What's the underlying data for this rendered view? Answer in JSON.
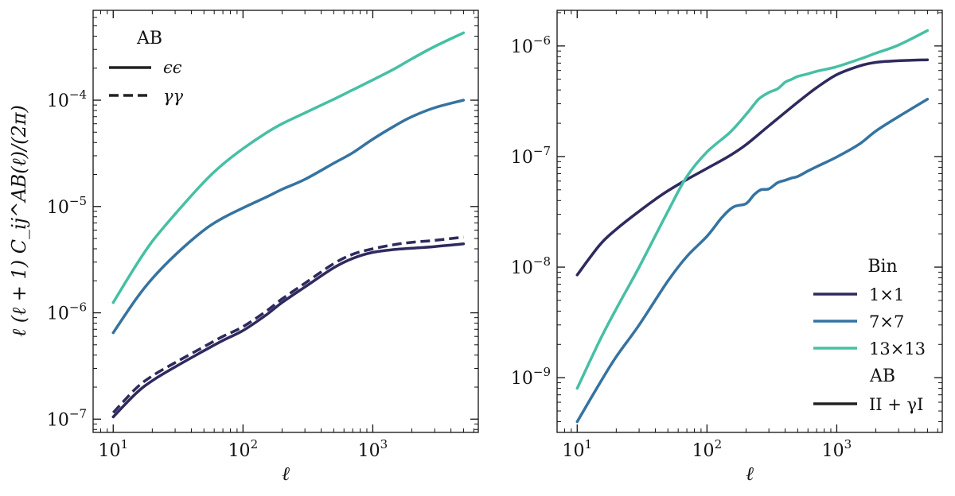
{
  "colors": {
    "bin_1x1": "#2e2a5e",
    "bin_7x7": "#3573a1",
    "bin_13x13": "#47bfa5",
    "legend_black": "#222222"
  },
  "chart_data": [
    {
      "type": "line",
      "panel": "left",
      "xscale": "log",
      "yscale": "log",
      "xlim": [
        7,
        6500
      ],
      "ylim": [
        7.5e-08,
        0.0007
      ],
      "xlabel": "ℓ",
      "ylabel": "ℓ (ℓ + 1) C_ij^AB(ℓ)/(2π)",
      "xticks": [
        {
          "v": 10,
          "base": "10",
          "exp": "1"
        },
        {
          "v": 100,
          "base": "10",
          "exp": "2"
        },
        {
          "v": 1000,
          "base": "10",
          "exp": "3"
        }
      ],
      "yticks": [
        {
          "v": 1e-07,
          "base": "10",
          "exp": "−7"
        },
        {
          "v": 1e-06,
          "base": "10",
          "exp": "−6"
        },
        {
          "v": 1e-05,
          "base": "10",
          "exp": "−5"
        },
        {
          "v": 0.0001,
          "base": "10",
          "exp": "−4"
        }
      ],
      "legend": {
        "title": "AB",
        "entries": [
          {
            "label": "ϵϵ",
            "style": "solid"
          },
          {
            "label": "γγ",
            "style": "dashed"
          }
        ]
      },
      "series": [
        {
          "name": "13×13 ϵϵ",
          "colorKey": "bin_13x13",
          "style": "solid",
          "x": [
            10,
            15,
            20,
            30,
            50,
            70,
            100,
            150,
            200,
            300,
            500,
            700,
            1000,
            1500,
            2000,
            3000,
            5000
          ],
          "y": [
            1.25e-06,
            2.8e-06,
            4.7e-06,
            8.5e-06,
            1.7e-05,
            2.5e-05,
            3.5e-05,
            4.9e-05,
            6e-05,
            7.6e-05,
            0.000102,
            0.000125,
            0.000155,
            0.0002,
            0.000245,
            0.00032,
            0.00043
          ]
        },
        {
          "name": "7×7 ϵϵ",
          "colorKey": "bin_7x7",
          "style": "solid",
          "x": [
            10,
            15,
            20,
            30,
            50,
            70,
            100,
            150,
            200,
            300,
            500,
            700,
            1000,
            1500,
            2000,
            3000,
            5000
          ],
          "y": [
            6.5e-07,
            1.35e-06,
            2.1e-06,
            3.5e-06,
            6e-06,
            7.8e-06,
            9.7e-06,
            1.22e-05,
            1.45e-05,
            1.8e-05,
            2.55e-05,
            3.2e-05,
            4.3e-05,
            5.8e-05,
            7e-05,
            8.5e-05,
            0.0001
          ]
        },
        {
          "name": "1×1 ϵϵ",
          "colorKey": "bin_1x1",
          "style": "solid",
          "x": [
            10,
            15,
            20,
            30,
            50,
            70,
            100,
            150,
            200,
            300,
            500,
            700,
            1000,
            1500,
            2000,
            3000,
            5000
          ],
          "y": [
            1.05e-07,
            1.75e-07,
            2.3e-07,
            3.1e-07,
            4.4e-07,
            5.5e-07,
            6.8e-07,
            9.5e-07,
            1.25e-06,
            1.75e-06,
            2.65e-06,
            3.25e-06,
            3.7e-06,
            3.95e-06,
            4.05e-06,
            4.2e-06,
            4.45e-06
          ]
        },
        {
          "name": "1×1 γγ",
          "colorKey": "bin_1x1",
          "style": "dashed",
          "x": [
            10,
            15,
            20,
            30,
            50,
            70,
            100,
            150,
            200,
            300,
            500,
            700,
            1000,
            1500,
            2000,
            3000,
            5000
          ],
          "y": [
            1.15e-07,
            1.95e-07,
            2.55e-07,
            3.4e-07,
            4.8e-07,
            6e-07,
            7.4e-07,
            1.03e-06,
            1.35e-06,
            1.9e-06,
            2.9e-06,
            3.55e-06,
            4e-06,
            4.4e-06,
            4.6e-06,
            4.8e-06,
            5.15e-06
          ]
        }
      ]
    },
    {
      "type": "line",
      "panel": "right",
      "xscale": "log",
      "yscale": "log",
      "xlim": [
        7,
        6500
      ],
      "ylim": [
        3.2e-10,
        2.1e-06
      ],
      "xlabel": "ℓ",
      "xticks": [
        {
          "v": 10,
          "base": "10",
          "exp": "1"
        },
        {
          "v": 100,
          "base": "10",
          "exp": "2"
        },
        {
          "v": 1000,
          "base": "10",
          "exp": "3"
        }
      ],
      "yticks": [
        {
          "v": 1e-09,
          "base": "10",
          "exp": "−9"
        },
        {
          "v": 1e-08,
          "base": "10",
          "exp": "−8"
        },
        {
          "v": 1e-07,
          "base": "10",
          "exp": "−7"
        },
        {
          "v": 1e-06,
          "base": "10",
          "exp": "−6"
        }
      ],
      "legend": {
        "bin_title": "Bin",
        "bin_entries": [
          {
            "label": "1×1",
            "colorKey": "bin_1x1"
          },
          {
            "label": "7×7",
            "colorKey": "bin_7x7"
          },
          {
            "label": "13×13",
            "colorKey": "bin_13x13"
          }
        ],
        "ab_title": "AB",
        "ab_entries": [
          {
            "label": "II + γI",
            "style": "solid"
          }
        ]
      },
      "series": [
        {
          "name": "1×1 II+γI",
          "colorKey": "bin_1x1",
          "style": "solid",
          "x": [
            10,
            15,
            20,
            30,
            40,
            50,
            70,
            100,
            150,
            200,
            300,
            500,
            700,
            1000,
            1500,
            2000,
            3000,
            5000
          ],
          "y": [
            8.5e-09,
            1.6e-08,
            2.2e-08,
            3.2e-08,
            4.1e-08,
            4.9e-08,
            6.2e-08,
            7.8e-08,
            1.02e-07,
            1.28e-07,
            1.9e-07,
            3.1e-07,
            4.2e-07,
            5.5e-07,
            6.6e-07,
            7.1e-07,
            7.35e-07,
            7.5e-07
          ]
        },
        {
          "name": "7×7 II+γI",
          "colorKey": "bin_7x7",
          "style": "solid",
          "x": [
            10,
            15,
            20,
            30,
            50,
            70,
            100,
            130,
            160,
            200,
            230,
            260,
            300,
            350,
            400,
            450,
            500,
            600,
            700,
            1000,
            1500,
            2000,
            3000,
            5000
          ],
          "y": [
            4e-10,
            9e-10,
            1.55e-09,
            3e-09,
            7.5e-09,
            1.25e-08,
            1.9e-08,
            2.8e-08,
            3.5e-08,
            3.75e-08,
            4.5e-08,
            5e-08,
            5.1e-08,
            5.8e-08,
            6.1e-08,
            6.4e-08,
            6.6e-08,
            7.4e-08,
            8.1e-08,
            9.9e-08,
            1.3e-07,
            1.7e-07,
            2.3e-07,
            3.3e-07
          ]
        },
        {
          "name": "13×13 II+γI",
          "colorKey": "bin_13x13",
          "style": "solid",
          "x": [
            10,
            15,
            20,
            30,
            50,
            70,
            100,
            150,
            200,
            250,
            300,
            350,
            400,
            450,
            500,
            600,
            700,
            1000,
            1500,
            2000,
            3000,
            5000
          ],
          "y": [
            8e-10,
            2.2e-09,
            4.2e-09,
            1e-08,
            3.2e-08,
            6.6e-08,
            1.1e-07,
            1.65e-07,
            2.4e-07,
            3.3e-07,
            3.8e-07,
            4.1e-07,
            4.7e-07,
            5e-07,
            5.3e-07,
            5.6e-07,
            5.9e-07,
            6.5e-07,
            7.6e-07,
            8.6e-07,
            1.02e-06,
            1.38e-06
          ]
        }
      ]
    }
  ]
}
